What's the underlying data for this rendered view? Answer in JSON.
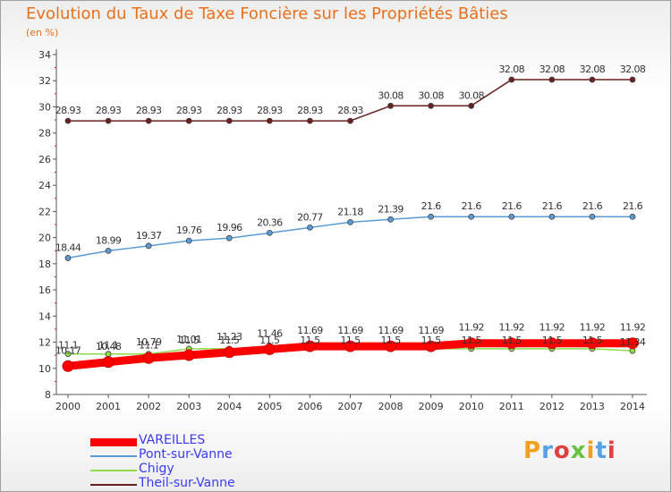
{
  "chart_data": {
    "type": "line",
    "title": "Evolution du Taux de Taxe Foncière sur les Propriétés Bâties",
    "unit_label": "(en %)",
    "xlabel": "",
    "ylabel": "",
    "ylim": [
      8,
      34
    ],
    "yticks": [
      8,
      10,
      12,
      14,
      16,
      18,
      20,
      22,
      24,
      26,
      28,
      30,
      32,
      34
    ],
    "categories": [
      "2000",
      "2001",
      "2002",
      "2003",
      "2004",
      "2005",
      "2006",
      "2007",
      "2008",
      "2009",
      "2010",
      "2011",
      "2012",
      "2013",
      "2014"
    ],
    "grid": false,
    "series": [
      {
        "name": "Theil-sur-Vanne",
        "color": "#6b1f1f",
        "values": [
          28.93,
          28.93,
          28.93,
          28.93,
          28.93,
          28.93,
          28.93,
          28.93,
          30.08,
          30.08,
          30.08,
          32.08,
          32.08,
          32.08,
          32.08
        ],
        "labels": [
          "28.93",
          "28.93",
          "28.93",
          "28.93",
          "28.93",
          "28.93",
          "28.93",
          "28.93",
          "30.08",
          "30.08",
          "30.08",
          "32.08",
          "32.08",
          "32.08",
          "32.08"
        ]
      },
      {
        "name": "Pont-sur-Vanne",
        "color": "#5b9bd5",
        "values": [
          18.44,
          18.99,
          19.37,
          19.76,
          19.96,
          20.36,
          20.77,
          21.18,
          21.39,
          21.6,
          21.6,
          21.6,
          21.6,
          21.6,
          21.6
        ],
        "labels": [
          "18.44",
          "18.99",
          "19.37",
          "19.76",
          "19.96",
          "20.36",
          "20.77",
          "21.18",
          "21.39",
          "21.6",
          "21.6",
          "21.6",
          "21.6",
          "21.6",
          "21.6"
        ]
      },
      {
        "name": "Chigy",
        "color": "#8fdc4a",
        "values": [
          11.1,
          11.1,
          11.1,
          11.5,
          11.5,
          11.5,
          11.5,
          11.5,
          11.5,
          11.5,
          11.5,
          11.5,
          11.5,
          11.5,
          11.34
        ],
        "labels": [
          "11.1",
          "11.1",
          "11.1",
          "11.5",
          "11.5",
          "11.5",
          "11.5",
          "11.5",
          "11.5",
          "11.5",
          "11.5",
          "11.5",
          "11.5",
          "11.5",
          "11.34"
        ]
      },
      {
        "name": "VAREILLES",
        "color": "#ff0000",
        "values": [
          10.17,
          10.48,
          10.79,
          11.01,
          11.23,
          11.46,
          11.69,
          11.69,
          11.69,
          11.69,
          11.92,
          11.92,
          11.92,
          11.92,
          11.92
        ],
        "labels": [
          "10.17",
          "10.48",
          "10.79",
          "11.01",
          "11.23",
          "11.46",
          "11.69",
          "11.69",
          "11.69",
          "11.69",
          "11.92",
          "11.92",
          "11.92",
          "11.92",
          "11.92"
        ]
      }
    ],
    "legend_order": [
      "VAREILLES",
      "Pont-sur-Vanne",
      "Chigy",
      "Theil-sur-Vanne"
    ],
    "legend_position": "bottom-left"
  },
  "logo": {
    "text": "Proxiti",
    "colors": [
      "#f0a020",
      "#5aa0e6",
      "#e04040",
      "#6ac040",
      "#f0a020",
      "#5aa0e6",
      "#e04040"
    ]
  }
}
